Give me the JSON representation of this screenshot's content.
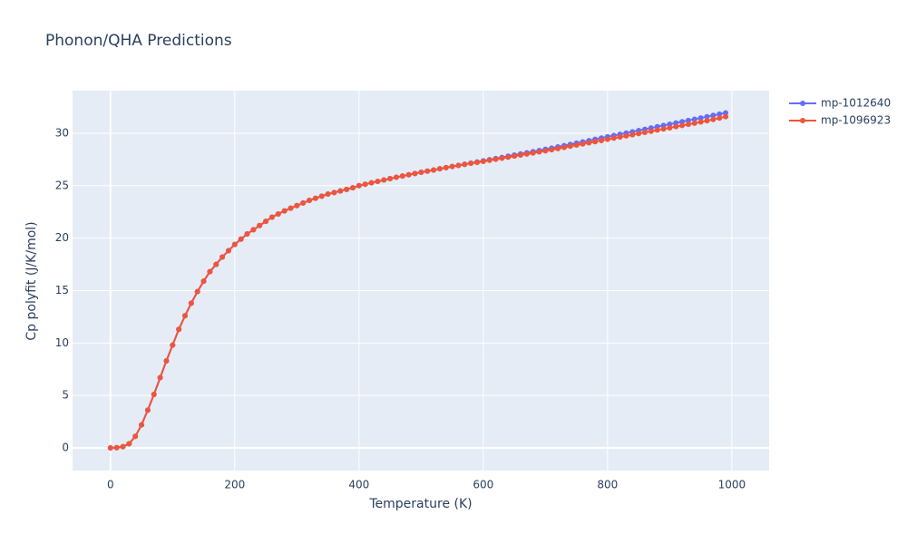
{
  "chart_data": {
    "type": "line",
    "title": "Phonon/QHA Predictions",
    "x_label": "Temperature (K)",
    "y_label": "Cp polyfit (J/K/mol)",
    "x": [
      0,
      10,
      20,
      30,
      40,
      50,
      60,
      70,
      80,
      90,
      100,
      110,
      120,
      130,
      140,
      150,
      160,
      170,
      180,
      190,
      200,
      210,
      220,
      230,
      240,
      250,
      260,
      270,
      280,
      290,
      300,
      310,
      320,
      330,
      340,
      350,
      360,
      370,
      380,
      390,
      400,
      410,
      420,
      430,
      440,
      450,
      460,
      470,
      480,
      490,
      500,
      510,
      520,
      530,
      540,
      550,
      560,
      570,
      580,
      590,
      600,
      610,
      620,
      630,
      640,
      650,
      660,
      670,
      680,
      690,
      700,
      710,
      720,
      730,
      740,
      750,
      760,
      770,
      780,
      790,
      800,
      810,
      820,
      830,
      840,
      850,
      860,
      870,
      880,
      890,
      900,
      910,
      920,
      930,
      940,
      950,
      960,
      970,
      980,
      990
    ],
    "series": [
      {
        "name": "mp-1012640",
        "color": "#636efa",
        "values": [
          0,
          0.02,
          0.12,
          0.4,
          1.1,
          2.2,
          3.6,
          5.1,
          6.7,
          8.3,
          9.8,
          11.3,
          12.6,
          13.8,
          14.9,
          15.9,
          16.8,
          17.5,
          18.2,
          18.8,
          19.4,
          19.9,
          20.4,
          20.8,
          21.2,
          21.6,
          22.0,
          22.3,
          22.6,
          22.85,
          23.1,
          23.35,
          23.6,
          23.8,
          24.0,
          24.2,
          24.35,
          24.5,
          24.65,
          24.8,
          25.0,
          25.14,
          25.28,
          25.41,
          25.54,
          25.67,
          25.8,
          25.92,
          26.04,
          26.16,
          26.28,
          26.39,
          26.5,
          26.61,
          26.72,
          26.83,
          26.94,
          27.05,
          27.16,
          27.26,
          27.37,
          27.48,
          27.59,
          27.7,
          27.81,
          27.92,
          28.03,
          28.14,
          28.25,
          28.36,
          28.47,
          28.58,
          28.7,
          28.82,
          28.94,
          29.06,
          29.18,
          29.3,
          29.42,
          29.54,
          29.66,
          29.78,
          29.9,
          30.02,
          30.14,
          30.26,
          30.38,
          30.5,
          30.62,
          30.74,
          30.86,
          30.98,
          31.1,
          31.22,
          31.34,
          31.46,
          31.58,
          31.7,
          31.82,
          31.94
        ]
      },
      {
        "name": "mp-1096923",
        "color": "#EF553B",
        "values": [
          0,
          0.02,
          0.12,
          0.4,
          1.1,
          2.2,
          3.6,
          5.1,
          6.7,
          8.3,
          9.8,
          11.3,
          12.6,
          13.8,
          14.9,
          15.9,
          16.8,
          17.5,
          18.2,
          18.8,
          19.4,
          19.9,
          20.4,
          20.8,
          21.2,
          21.6,
          22.0,
          22.3,
          22.6,
          22.85,
          23.1,
          23.35,
          23.6,
          23.8,
          24.0,
          24.2,
          24.35,
          24.5,
          24.65,
          24.8,
          25.0,
          25.14,
          25.28,
          25.41,
          25.54,
          25.67,
          25.8,
          25.92,
          26.04,
          26.16,
          26.28,
          26.39,
          26.5,
          26.61,
          26.72,
          26.83,
          26.93,
          27.03,
          27.13,
          27.22,
          27.32,
          27.42,
          27.52,
          27.62,
          27.72,
          27.82,
          27.92,
          28.02,
          28.12,
          28.22,
          28.32,
          28.43,
          28.54,
          28.65,
          28.76,
          28.87,
          28.98,
          29.09,
          29.2,
          29.31,
          29.42,
          29.53,
          29.64,
          29.75,
          29.86,
          29.97,
          30.08,
          30.19,
          30.3,
          30.41,
          30.52,
          30.63,
          30.74,
          30.85,
          30.96,
          31.08,
          31.2,
          31.32,
          31.44,
          31.58
        ]
      }
    ],
    "xlim": [
      -61,
      1060
    ],
    "ylim": [
      -2.16,
      34.06
    ],
    "xticks": [
      0,
      200,
      400,
      600,
      800,
      1000
    ],
    "yticks": [
      0,
      5,
      10,
      15,
      20,
      25,
      30
    ],
    "grid": true,
    "legend": "top-right"
  }
}
